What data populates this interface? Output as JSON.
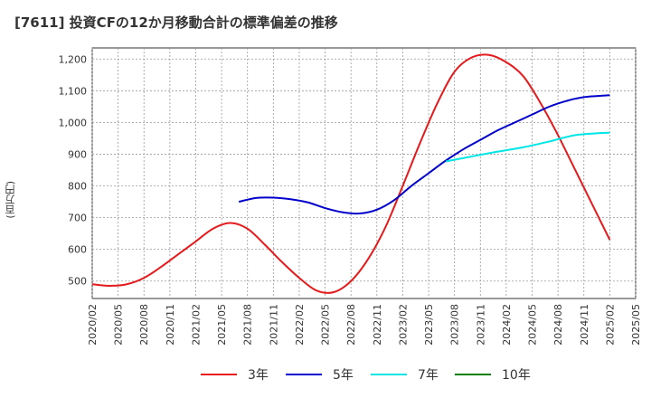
{
  "title": "[7611]  投資CFの12か月移動合計の標準偏差の推移",
  "chart_data": {
    "type": "line",
    "title": "[7611]  投資CFの12か月移動合計の標準偏差の推移",
    "ylabel": "(百万円)",
    "xlabel": "",
    "ylim": [
      445,
      1235
    ],
    "yticks": [
      500,
      600,
      700,
      800,
      900,
      1000,
      1100,
      1200
    ],
    "ytick_labels": [
      "500",
      "600",
      "700",
      "800",
      "900",
      "1,000",
      "1,100",
      "1,200"
    ],
    "xticks": [
      "2020/02",
      "2020/05",
      "2020/08",
      "2020/11",
      "2021/02",
      "2021/05",
      "2021/08",
      "2021/11",
      "2022/02",
      "2022/05",
      "2022/08",
      "2022/11",
      "2023/02",
      "2023/05",
      "2023/08",
      "2023/11",
      "2024/02",
      "2024/05",
      "2024/08",
      "2024/11",
      "2025/02",
      "2025/05"
    ],
    "grid": true,
    "legend_position": "bottom",
    "series": [
      {
        "name": "3年",
        "color": "#e41a1c",
        "x": [
          "2020/02",
          "2020/04",
          "2020/06",
          "2020/08",
          "2020/10",
          "2020/12",
          "2021/02",
          "2021/04",
          "2021/06",
          "2021/08",
          "2021/10",
          "2021/12",
          "2022/02",
          "2022/04",
          "2022/06",
          "2022/08",
          "2022/10",
          "2022/12",
          "2023/02",
          "2023/04",
          "2023/06",
          "2023/08",
          "2023/10",
          "2023/12",
          "2024/02",
          "2024/04",
          "2024/06",
          "2024/08",
          "2024/10",
          "2024/12",
          "2025/02"
        ],
        "values": [
          490,
          485,
          490,
          510,
          545,
          585,
          625,
          665,
          683,
          665,
          615,
          560,
          510,
          470,
          465,
          500,
          570,
          670,
          800,
          935,
          1060,
          1160,
          1205,
          1213,
          1190,
          1145,
          1060,
          960,
          850,
          740,
          630
        ]
      },
      {
        "name": "5年",
        "color": "#0000cc",
        "x": [
          "2021/07",
          "2021/09",
          "2021/11",
          "2022/01",
          "2022/03",
          "2022/05",
          "2022/07",
          "2022/09",
          "2022/11",
          "2023/01",
          "2023/03",
          "2023/05",
          "2023/07",
          "2023/09",
          "2023/11",
          "2024/01",
          "2024/03",
          "2024/05",
          "2024/07",
          "2024/09",
          "2024/11",
          "2025/02"
        ],
        "values": [
          750,
          762,
          763,
          758,
          748,
          730,
          717,
          713,
          725,
          755,
          800,
          840,
          880,
          915,
          945,
          975,
          1000,
          1025,
          1050,
          1068,
          1080,
          1086
        ]
      },
      {
        "name": "7年",
        "color": "#00e5e5",
        "x": [
          "2023/07",
          "2023/10",
          "2024/01",
          "2024/04",
          "2024/07",
          "2024/10",
          "2025/02"
        ],
        "values": [
          877,
          893,
          908,
          922,
          940,
          960,
          968
        ]
      },
      {
        "name": "10年",
        "color": "#008000",
        "x": [],
        "values": []
      }
    ]
  }
}
